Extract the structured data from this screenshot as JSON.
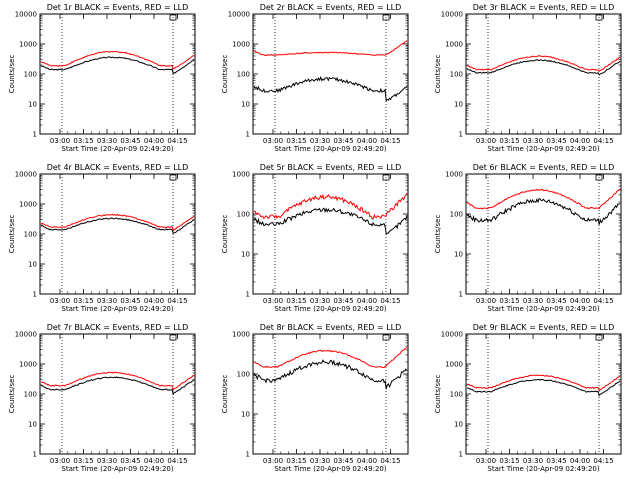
{
  "chart_data": [
    {
      "type": "line",
      "title": "Det 1r BLACK = Events, RED = LLD",
      "xlabel": "Start Time (20-Apr-09 02:49:20)",
      "ylabel": "Counts/sec",
      "y_scale": "log",
      "ylim": [
        1,
        10000
      ],
      "yticks": [
        "1",
        "10",
        "100",
        "1000",
        "10000"
      ],
      "xticks": [
        "03:00",
        "03:15",
        "03:30",
        "03:45",
        "04:00",
        "04:15"
      ],
      "series": [
        {
          "name": "Events",
          "color": "#000000",
          "base": 140,
          "peak": 360,
          "dip_after": 100
        },
        {
          "name": "LLD",
          "color": "#ff0000",
          "base": 190,
          "peak": 560,
          "dip_after": 140
        }
      ]
    },
    {
      "type": "line",
      "title": "Det 2r BLACK = Events, RED = LLD",
      "xlabel": "Start Time (20-Apr-09 02:49:20)",
      "ylabel": "Counts/sec",
      "y_scale": "log",
      "ylim": [
        1,
        10000
      ],
      "yticks": [
        "1",
        "10",
        "100",
        "1000",
        "10000"
      ],
      "xticks": [
        "03:00",
        "03:15",
        "03:30",
        "03:45",
        "04:00",
        "04:15"
      ],
      "series": [
        {
          "name": "Events",
          "color": "#000000",
          "base": 28,
          "peak": 70,
          "dip_after": 12
        },
        {
          "name": "LLD",
          "color": "#ff0000",
          "base": 430,
          "peak": 520,
          "dip_after": 430
        }
      ]
    },
    {
      "type": "line",
      "title": "Det 3r BLACK = Events, RED = LLD",
      "xlabel": "Start Time (20-Apr-09 02:49:20)",
      "ylabel": "Counts/sec",
      "y_scale": "log",
      "ylim": [
        1,
        10000
      ],
      "yticks": [
        "1",
        "10",
        "100",
        "1000",
        "10000"
      ],
      "xticks": [
        "03:00",
        "03:15",
        "03:30",
        "03:45",
        "04:00",
        "04:15"
      ],
      "series": [
        {
          "name": "Events",
          "color": "#000000",
          "base": 110,
          "peak": 290,
          "dip_after": 90
        },
        {
          "name": "LLD",
          "color": "#ff0000",
          "base": 140,
          "peak": 390,
          "dip_after": 120
        }
      ]
    },
    {
      "type": "line",
      "title": "Det 4r BLACK = Events, RED = LLD",
      "xlabel": "Start Time (20-Apr-09 02:49:20)",
      "ylabel": "Counts/sec",
      "y_scale": "log",
      "ylim": [
        1,
        10000
      ],
      "yticks": [
        "1",
        "10",
        "100",
        "1000",
        "10000"
      ],
      "xticks": [
        "03:00",
        "03:15",
        "03:30",
        "03:45",
        "04:00",
        "04:15"
      ],
      "series": [
        {
          "name": "Events",
          "color": "#000000",
          "base": 140,
          "peak": 330,
          "dip_after": 100
        },
        {
          "name": "LLD",
          "color": "#ff0000",
          "base": 170,
          "peak": 440,
          "dip_after": 130
        }
      ]
    },
    {
      "type": "line",
      "title": "Det 5r BLACK = Events, RED = LLD",
      "xlabel": "Start Time (20-Apr-09 02:49:20)",
      "ylabel": "Counts/sec",
      "y_scale": "log",
      "ylim": [
        1,
        1000
      ],
      "yticks": [
        "1",
        "10",
        "100",
        "1000"
      ],
      "xticks": [
        "03:00",
        "03:15",
        "03:30",
        "03:45",
        "04:00",
        "04:15"
      ],
      "series": [
        {
          "name": "Events",
          "color": "#000000",
          "base": 55,
          "peak": 130,
          "dip_after": 28
        },
        {
          "name": "LLD",
          "color": "#ff0000",
          "base": 85,
          "peak": 270,
          "dip_after": 100
        }
      ]
    },
    {
      "type": "line",
      "title": "Det 6r BLACK = Events, RED = LLD",
      "xlabel": "Start Time (20-Apr-09 02:49:20)",
      "ylabel": "Counts/sec",
      "y_scale": "log",
      "ylim": [
        1,
        1000
      ],
      "yticks": [
        "1",
        "10",
        "100",
        "1000"
      ],
      "xticks": [
        "03:00",
        "03:15",
        "03:30",
        "03:45",
        "04:00",
        "04:15"
      ],
      "series": [
        {
          "name": "Events",
          "color": "#000000",
          "base": 70,
          "peak": 220,
          "dip_after": 60
        },
        {
          "name": "LLD",
          "color": "#ff0000",
          "base": 140,
          "peak": 400,
          "dip_after": 140
        }
      ]
    },
    {
      "type": "line",
      "title": "Det 7r BLACK = Events, RED = LLD",
      "xlabel": "Start Time (20-Apr-09 02:49:20)",
      "ylabel": "Counts/sec",
      "y_scale": "log",
      "ylim": [
        1,
        10000
      ],
      "yticks": [
        "1",
        "10",
        "100",
        "1000",
        "10000"
      ],
      "xticks": [
        "03:00",
        "03:15",
        "03:30",
        "03:45",
        "04:00",
        "04:15"
      ],
      "series": [
        {
          "name": "Events",
          "color": "#000000",
          "base": 140,
          "peak": 360,
          "dip_after": 100
        },
        {
          "name": "LLD",
          "color": "#ff0000",
          "base": 190,
          "peak": 520,
          "dip_after": 140
        }
      ]
    },
    {
      "type": "line",
      "title": "Det 8r BLACK = Events, RED = LLD",
      "xlabel": "Start Time (20-Apr-09 02:49:20)",
      "ylabel": "Counts/sec",
      "y_scale": "log",
      "ylim": [
        1,
        1000
      ],
      "yticks": [
        "1",
        "10",
        "100",
        "1000"
      ],
      "xticks": [
        "03:00",
        "03:15",
        "03:30",
        "03:45",
        "04:00",
        "04:15"
      ],
      "series": [
        {
          "name": "Events",
          "color": "#000000",
          "base": 70,
          "peak": 200,
          "dip_after": 45
        },
        {
          "name": "LLD",
          "color": "#ff0000",
          "base": 150,
          "peak": 380,
          "dip_after": 160
        }
      ]
    },
    {
      "type": "line",
      "title": "Det 9r BLACK = Events, RED = LLD",
      "xlabel": "Start Time (20-Apr-09 02:49:20)",
      "ylabel": "Counts/sec",
      "y_scale": "log",
      "ylim": [
        1,
        10000
      ],
      "yticks": [
        "1",
        "10",
        "100",
        "1000",
        "10000"
      ],
      "xticks": [
        "03:00",
        "03:15",
        "03:30",
        "03:45",
        "04:00",
        "04:15"
      ],
      "series": [
        {
          "name": "Events",
          "color": "#000000",
          "base": 120,
          "peak": 300,
          "dip_after": 90
        },
        {
          "name": "LLD",
          "color": "#ff0000",
          "base": 160,
          "peak": 420,
          "dip_after": 130
        }
      ]
    }
  ]
}
